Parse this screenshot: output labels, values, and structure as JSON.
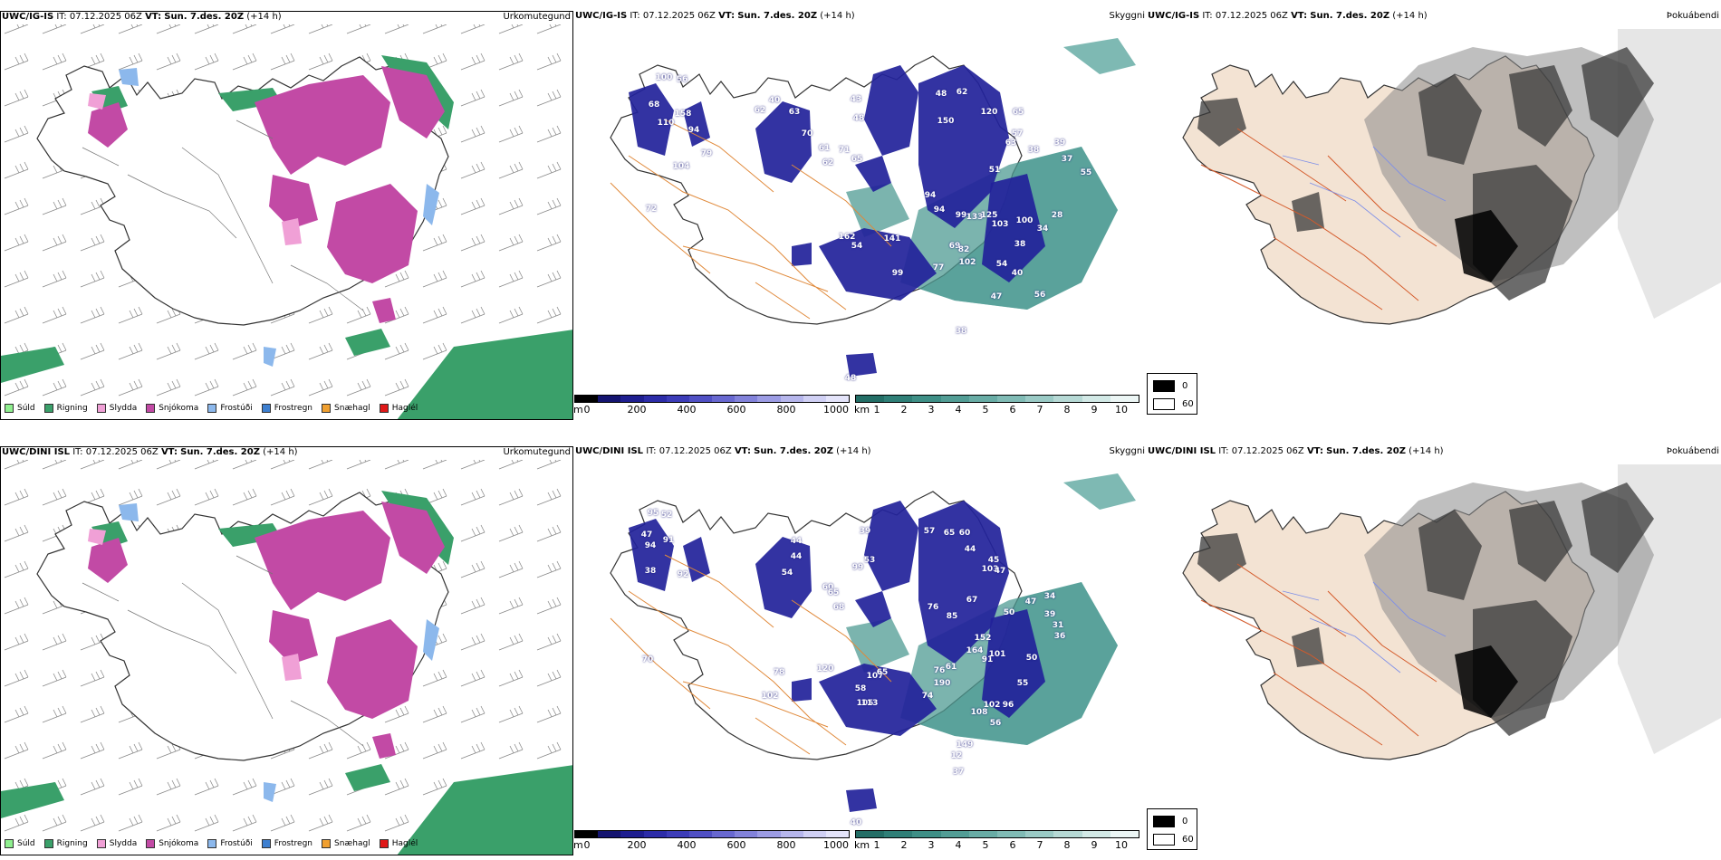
{
  "rows": [
    {
      "model": "UWC/IG-IS",
      "run_label": "IT:",
      "run_time": "07.12.2025 06Z",
      "valid_label": "VT:",
      "valid_time": "Sun. 7.des. 20Z",
      "lead": "(+14 h)",
      "precip_field": "Úrkomutegund",
      "vis_field": "Skyggni",
      "fog_field": "Þokuábendi",
      "vis_numbers": [
        "100",
        "56",
        "68",
        "158",
        "110",
        "94",
        "79",
        "104",
        "72",
        "62",
        "40",
        "63",
        "70",
        "61",
        "62",
        "71",
        "65",
        "43",
        "48",
        "48",
        "62",
        "120",
        "65",
        "150",
        "57",
        "63",
        "51",
        "38",
        "39",
        "37",
        "55",
        "94",
        "94",
        "99",
        "133",
        "125",
        "103",
        "28",
        "34",
        "162",
        "141",
        "54",
        "99",
        "77",
        "69",
        "54",
        "100",
        "38",
        "82",
        "102",
        "40",
        "56",
        "47",
        "38",
        "48"
      ]
    },
    {
      "model": "UWC/DINI ISL",
      "run_label": "IT:",
      "run_time": "07.12.2025 06Z",
      "valid_label": "VT:",
      "valid_time": "Sun. 7.des. 20Z",
      "lead": "(+14 h)",
      "precip_field": "Úrkomutegund",
      "vis_field": "Skyggni",
      "fog_field": "Þokuábendi",
      "vis_numbers": [
        "95",
        "52",
        "47",
        "91",
        "94",
        "92",
        "38",
        "44",
        "44",
        "54",
        "60",
        "65",
        "68",
        "39",
        "53",
        "99",
        "57",
        "65",
        "60",
        "44",
        "45",
        "103",
        "47",
        "67",
        "50",
        "47",
        "34",
        "39",
        "31",
        "36",
        "76",
        "85",
        "152",
        "164",
        "91",
        "101",
        "50",
        "120",
        "107",
        "76",
        "190",
        "61",
        "55",
        "105",
        "74",
        "108",
        "102",
        "96",
        "56",
        "149",
        "12",
        "37",
        "70",
        "78",
        "102",
        "58",
        "65",
        "113",
        "40"
      ]
    }
  ],
  "precip_legend": [
    {
      "label": "Súld",
      "color": "#8fef8f"
    },
    {
      "label": "Rigning",
      "color": "#3aa06a"
    },
    {
      "label": "Slydda",
      "color": "#f0a0d6"
    },
    {
      "label": "Snjókoma",
      "color": "#c24aa5"
    },
    {
      "label": "Frostúði",
      "color": "#8cb8ec"
    },
    {
      "label": "Frostregn",
      "color": "#3d7fd0"
    },
    {
      "label": "Snæhagl",
      "color": "#f0a030"
    },
    {
      "label": "Haglél",
      "color": "#e01818"
    }
  ],
  "height_bar": {
    "unit": "m",
    "ticks": [
      "0",
      "200",
      "400",
      "600",
      "800",
      "1000"
    ],
    "colors": [
      "#000000",
      "#141470",
      "#1e1e90",
      "#2c2ca8",
      "#3c3cb8",
      "#5050c4",
      "#6868d0",
      "#8282da",
      "#9c9ce4",
      "#b6b6ec",
      "#d0d0f4",
      "#e4e4fa"
    ]
  },
  "vis_bar": {
    "unit": "km",
    "ticks": [
      "1",
      "2",
      "3",
      "4",
      "5",
      "6",
      "7",
      "8",
      "9",
      "10"
    ],
    "colors": [
      "#236e66",
      "#2f7f77",
      "#3e8f86",
      "#529d95",
      "#68aca5",
      "#80bbb5",
      "#9acac5",
      "#b6d9d5",
      "#d2e9e6",
      "#ecf6f5"
    ]
  },
  "fog_key": {
    "top": "0",
    "bottom": "60"
  }
}
